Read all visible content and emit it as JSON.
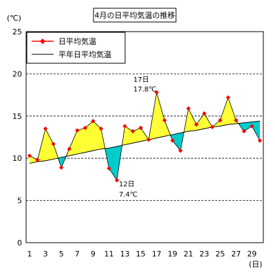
{
  "chart_data": {
    "type": "line",
    "title": "4月の日平均気温の推移",
    "ylabel": "(℃)",
    "xlabel": "(日)",
    "ylim": [
      0,
      25
    ],
    "yticks": [
      0,
      5,
      10,
      15,
      20,
      25
    ],
    "xlim": [
      1,
      30
    ],
    "xticks": [
      1,
      3,
      5,
      7,
      9,
      11,
      13,
      15,
      17,
      19,
      21,
      23,
      25,
      27,
      29
    ],
    "grid": "horizontal-dashed",
    "legend_position": "top-left",
    "x": [
      1,
      2,
      3,
      4,
      5,
      6,
      7,
      8,
      9,
      10,
      11,
      12,
      13,
      14,
      15,
      16,
      17,
      18,
      19,
      20,
      21,
      22,
      23,
      24,
      25,
      26,
      27,
      28,
      29,
      30
    ],
    "series": [
      {
        "name": "日平均気温",
        "values": [
          10.3,
          9.8,
          13.5,
          11.7,
          8.9,
          11.1,
          13.3,
          13.6,
          14.4,
          13.5,
          8.8,
          7.4,
          13.8,
          13.2,
          13.6,
          12.2,
          17.8,
          14.5,
          12.1,
          10.9,
          15.9,
          14.0,
          15.3,
          13.7,
          14.5,
          17.2,
          14.5,
          13.2,
          13.8,
          12.1
        ],
        "color": "#ff0000",
        "marker": "diamond"
      },
      {
        "name": "平年日平均気温",
        "values": [
          9.4,
          9.6,
          9.7,
          9.9,
          10.1,
          10.3,
          10.5,
          10.7,
          10.9,
          11.1,
          11.2,
          11.4,
          11.6,
          11.8,
          12.0,
          12.2,
          12.4,
          12.6,
          12.8,
          13.0,
          13.2,
          13.3,
          13.5,
          13.7,
          13.8,
          14.0,
          14.1,
          14.2,
          14.3,
          14.4
        ],
        "color": "#000000"
      }
    ],
    "fill_above_color": "#ffff33",
    "fill_below_color": "#00cccc",
    "annotations": [
      {
        "line1": "17日",
        "line2": "17.8℃"
      },
      {
        "line1": "12日",
        "line2": "7.4℃"
      }
    ]
  }
}
